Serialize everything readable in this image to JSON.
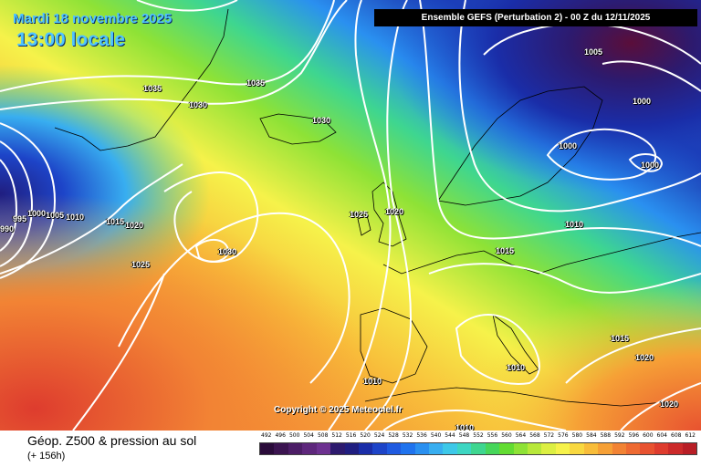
{
  "header": {
    "date": "Mardi 18 novembre 2025",
    "time": "13:00 locale",
    "model": "Ensemble GEFS  (Perturbation 2)  -  00 Z du 12/11/2025"
  },
  "footer": {
    "field_title": "Géop. Z500 & pression au sol",
    "lead_time": "(+ 156h)",
    "copyright": "Copyright © 2025 Meteociel.fr"
  },
  "isobar_labels": [
    "1035",
    "1035",
    "1030",
    "1030",
    "1005",
    "1000",
    "1000",
    "1000",
    "995",
    "990",
    "1005",
    "1000",
    "1010",
    "1015",
    "1020",
    "1030",
    "1025",
    "1025",
    "1020",
    "1015",
    "1010",
    "1015",
    "1020",
    "1010",
    "1010",
    "1010",
    "1020"
  ],
  "color_scale": {
    "labels": [
      "492",
      "496",
      "500",
      "504",
      "508",
      "512",
      "516",
      "520",
      "524",
      "528",
      "532",
      "536",
      "540",
      "544",
      "548",
      "552",
      "556",
      "560",
      "564",
      "568",
      "572",
      "576",
      "580",
      "584",
      "588",
      "592",
      "596",
      "600",
      "604",
      "608",
      "612"
    ],
    "colors": [
      "#2a0b3a",
      "#3b1450",
      "#4c1d66",
      "#5e277c",
      "#6d3190",
      "#2d1a6e",
      "#201e80",
      "#1a2da8",
      "#1d44c8",
      "#1f5ae0",
      "#1f73ee",
      "#2a90f0",
      "#38aef0",
      "#3dc8e8",
      "#3dd6c2",
      "#3ed690",
      "#46d65a",
      "#62dc32",
      "#8ee236",
      "#b8e83a",
      "#dcef42",
      "#f6f24a",
      "#f8d840",
      "#f8bd3a",
      "#f6a036",
      "#f28334",
      "#ee6a32",
      "#e85230",
      "#de3c2e",
      "#cc2a2a",
      "#b81e26"
    ]
  },
  "legend_colors": {
    "background": "#ffffff",
    "model_box": "#000000",
    "header_text": "#4fc3ff"
  }
}
